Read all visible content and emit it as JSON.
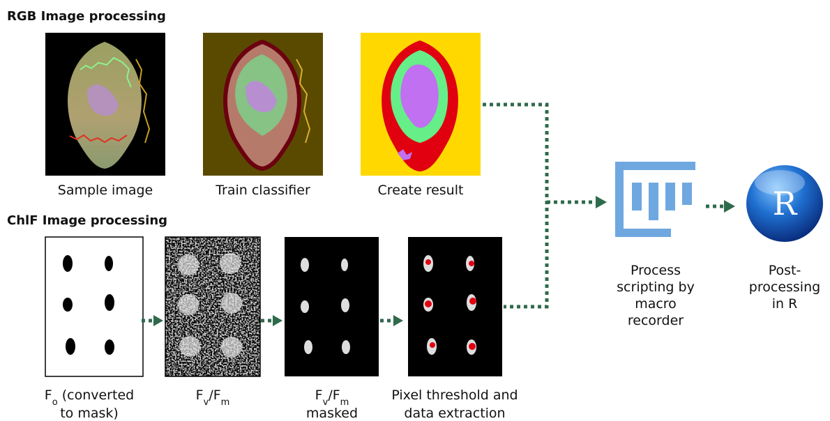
{
  "sections": [
    {
      "title": "RGB Image processing",
      "panels": [
        {
          "label": [
            [
              {
                "text": "Sample image"
              }
            ]
          ]
        },
        {
          "label": [
            [
              {
                "text": "Train classifier"
              }
            ]
          ]
        },
        {
          "label": [
            [
              {
                "text": "Create result"
              }
            ]
          ]
        }
      ]
    },
    {
      "title": "ChlF Image processing",
      "panels": [
        {
          "label": [
            [
              {
                "text": "F"
              },
              {
                "text": "o",
                "sub": true
              },
              {
                "text": "  (converted"
              }
            ],
            [
              {
                "text": "to mask)"
              }
            ]
          ]
        },
        {
          "label": [
            [
              {
                "text": "F"
              },
              {
                "text": "v",
                "sub": true
              },
              {
                "text": "/F"
              },
              {
                "text": "m",
                "sub": true
              }
            ]
          ]
        },
        {
          "label": [
            [
              {
                "text": "F"
              },
              {
                "text": "v",
                "sub": true
              },
              {
                "text": "/F"
              },
              {
                "text": "m",
                "sub": true
              }
            ],
            [
              {
                "text": "masked"
              }
            ]
          ]
        },
        {
          "label": [
            [
              {
                "text": "Pixel threshold and"
              }
            ],
            [
              {
                "text": "data extraction"
              }
            ]
          ]
        }
      ]
    }
  ],
  "tools": [
    {
      "label": [
        "Process",
        "scripting by",
        "macro",
        "recorder"
      ]
    },
    {
      "logo_text": "R",
      "label": [
        "Post-",
        "processing",
        "in R"
      ]
    }
  ]
}
